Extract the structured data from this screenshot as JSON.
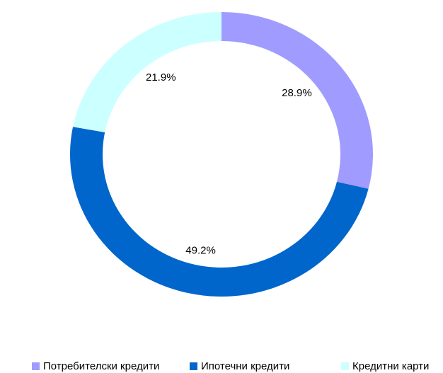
{
  "chart_data": {
    "type": "pie",
    "donut": true,
    "categories": [
      "Потребителски кредити",
      "Ипотечни кредити",
      "Кредитни карти"
    ],
    "values": [
      28.9,
      49.2,
      21.9
    ],
    "value_labels": [
      "28.9%",
      "49.2%",
      "21.9%"
    ],
    "colors": [
      "#a09cff",
      "#0066cc",
      "#ccffff"
    ],
    "legend": "bottom"
  }
}
